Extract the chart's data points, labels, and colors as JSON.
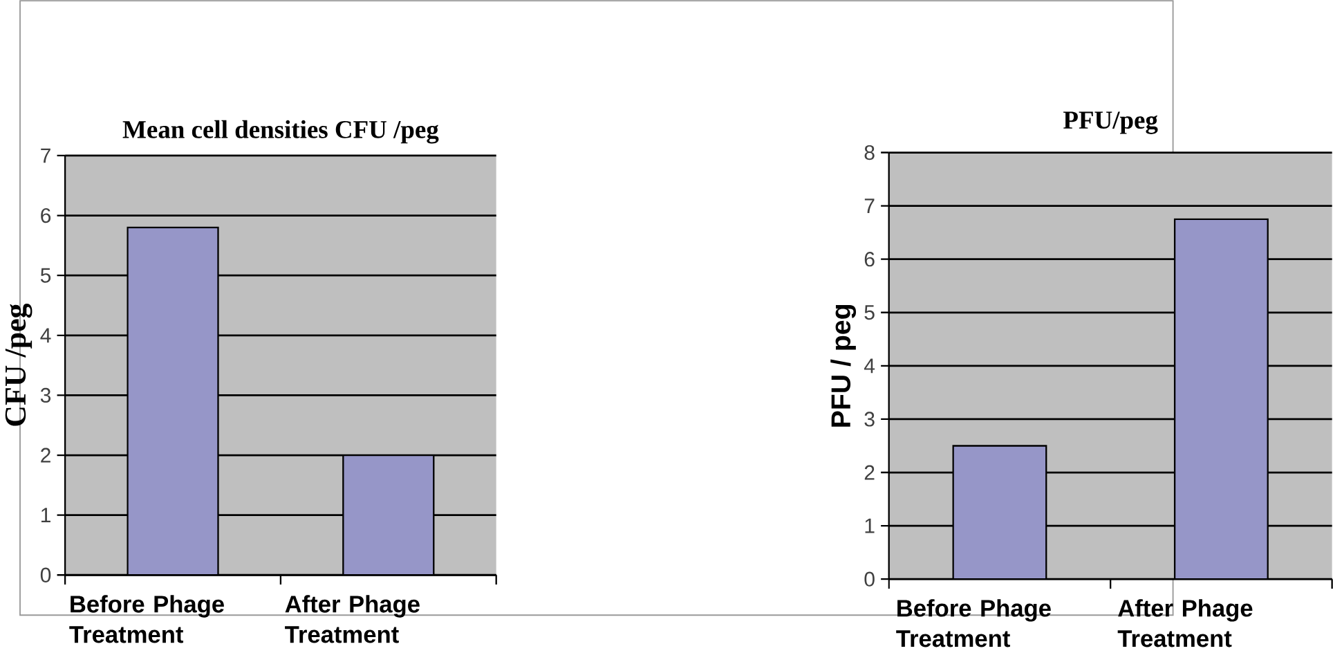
{
  "chart_data": [
    {
      "type": "bar",
      "title": "Mean cell densities CFU /peg",
      "ylabel": "CFU /peg",
      "categories": [
        "Before Phage Treatment",
        "After Phage Treatment"
      ],
      "values": [
        5.8,
        2.0
      ],
      "color": "#9696c8",
      "ylim": [
        0,
        7
      ],
      "yticks": [
        0,
        1,
        2,
        3,
        4,
        5,
        6,
        7
      ],
      "grid": "y"
    },
    {
      "type": "bar",
      "title": "PFU/peg",
      "ylabel": "PFU / peg",
      "categories": [
        "Before Phage Treatment",
        "After Phage Treatment"
      ],
      "values": [
        2.5,
        6.75
      ],
      "color": "#9696c8",
      "ylim": [
        0,
        8
      ],
      "yticks": [
        0,
        1,
        2,
        3,
        4,
        5,
        6,
        7,
        8
      ],
      "grid": "y"
    }
  ]
}
